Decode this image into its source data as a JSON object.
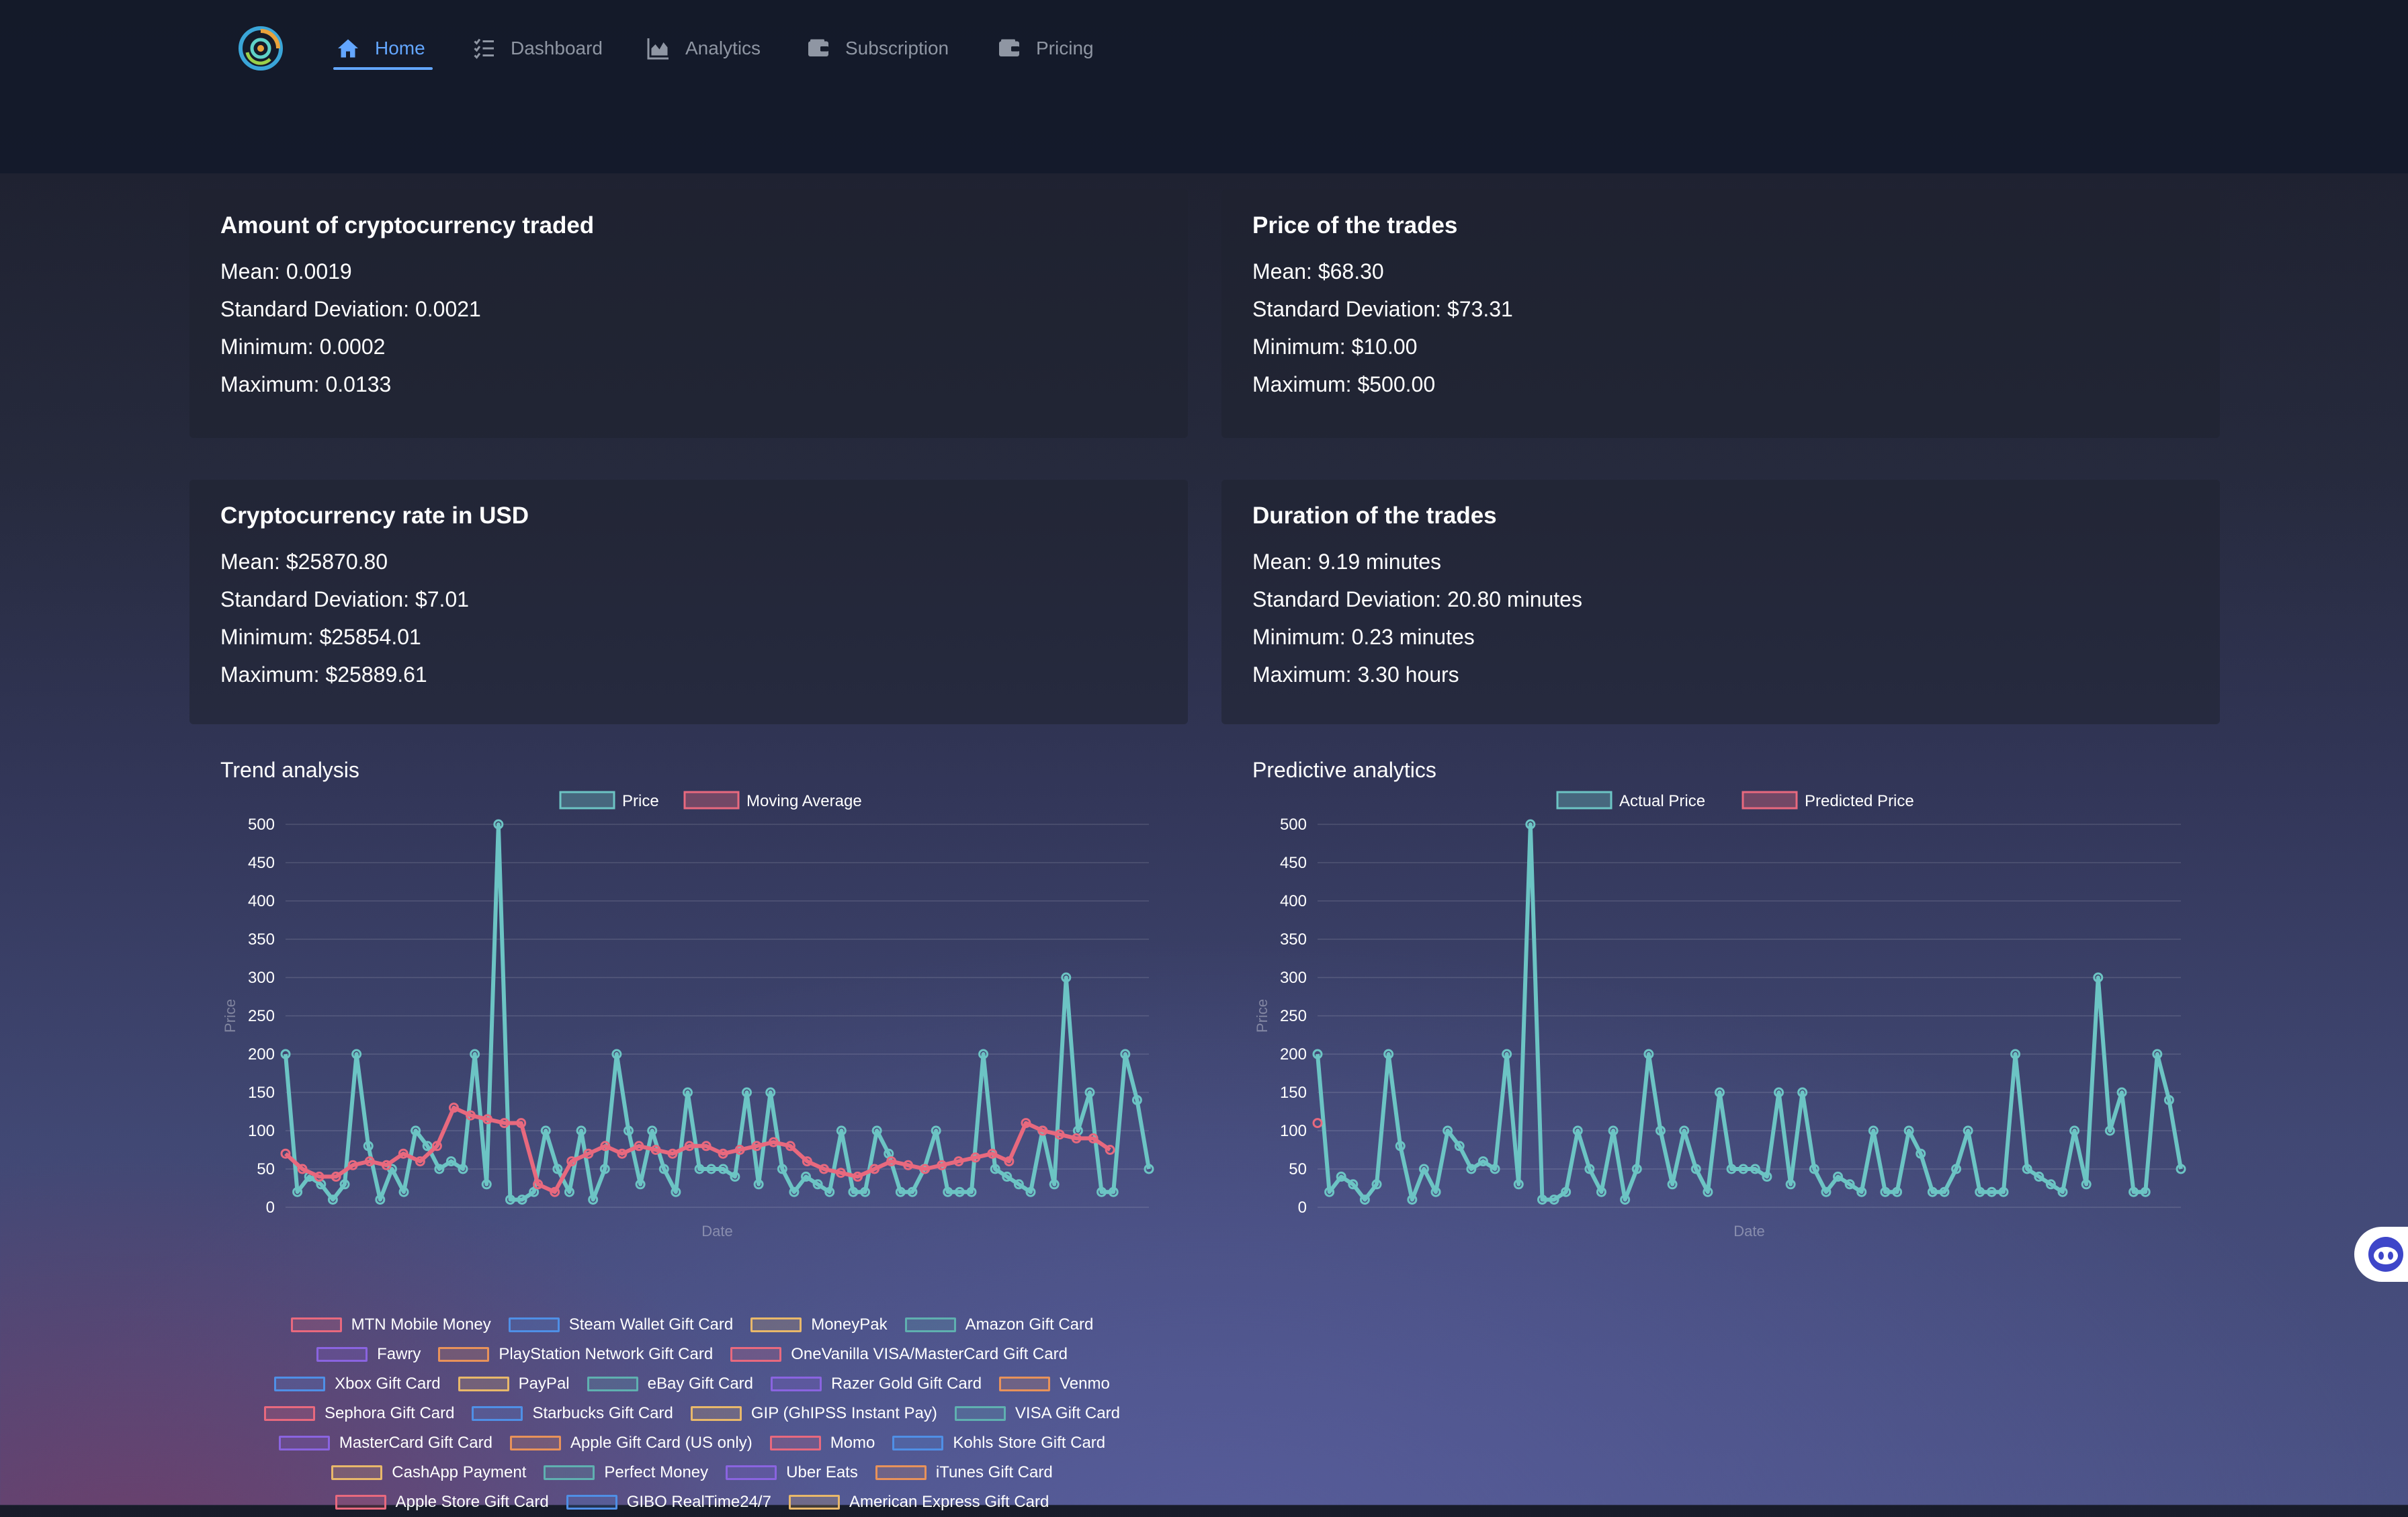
{
  "nav": {
    "items": [
      {
        "label": "Home",
        "icon": "home-icon",
        "active": true
      },
      {
        "label": "Dashboard",
        "icon": "checklist-icon",
        "active": false
      },
      {
        "label": "Analytics",
        "icon": "area-chart-icon",
        "active": false
      },
      {
        "label": "Subscription",
        "icon": "wallet-icon",
        "active": false
      },
      {
        "label": "Pricing",
        "icon": "wallet-icon",
        "active": false
      }
    ],
    "accent_color": "#63a6ff"
  },
  "stats": {
    "amount": {
      "title": "Amount of cryptocurrency traded",
      "mean": "Mean: 0.0019",
      "std": "Standard Deviation: 0.0021",
      "min": "Minimum: 0.0002",
      "max": "Maximum: 0.0133"
    },
    "price": {
      "title": "Price of the trades",
      "mean": "Mean: $68.30",
      "std": "Standard Deviation: $73.31",
      "min": "Minimum: $10.00",
      "max": "Maximum: $500.00"
    },
    "rate": {
      "title": "Cryptocurrency rate in USD",
      "mean": "Mean: $25870.80",
      "std": "Standard Deviation: $7.01",
      "min": "Minimum: $25854.01",
      "max": "Maximum: $25889.61"
    },
    "duration": {
      "title": "Duration of the trades",
      "mean": "Mean: 9.19 minutes",
      "std": "Standard Deviation: 20.80 minutes",
      "min": "Minimum: 0.23 minutes",
      "max": "Maximum: 3.30 hours"
    }
  },
  "chart_data": [
    {
      "type": "line",
      "title": "Trend analysis",
      "xlabel": "Date",
      "ylabel": "Price",
      "ylim": [
        0,
        500
      ],
      "yticks": [
        0,
        50,
        100,
        150,
        200,
        250,
        300,
        350,
        400,
        450,
        500
      ],
      "grid": true,
      "legend_position": "top",
      "series": [
        {
          "name": "Price",
          "color": "#6cc4c4",
          "values": [
            200,
            20,
            40,
            30,
            10,
            30,
            200,
            80,
            10,
            50,
            20,
            100,
            80,
            50,
            60,
            50,
            200,
            30,
            500,
            10,
            10,
            20,
            100,
            50,
            20,
            100,
            10,
            50,
            200,
            100,
            30,
            100,
            50,
            20,
            150,
            50,
            50,
            50,
            40,
            150,
            30,
            150,
            50,
            20,
            40,
            30,
            20,
            100,
            20,
            20,
            100,
            70,
            20,
            20,
            50,
            100,
            20,
            20,
            20,
            200,
            50,
            40,
            30,
            20,
            100,
            30,
            300,
            100,
            150,
            20,
            20,
            200,
            140,
            50
          ]
        },
        {
          "name": "Moving Average",
          "color": "#e8697e",
          "values": [
            70,
            50,
            40,
            40,
            55,
            60,
            55,
            70,
            60,
            80,
            130,
            120,
            115,
            110,
            110,
            30,
            20,
            60,
            70,
            80,
            70,
            80,
            75,
            70,
            80,
            80,
            70,
            75,
            80,
            85,
            80,
            60,
            50,
            45,
            40,
            50,
            60,
            55,
            50,
            55,
            60,
            65,
            70,
            60,
            110,
            100,
            95,
            90,
            90,
            75
          ]
        }
      ]
    },
    {
      "type": "line",
      "title": "Predictive analytics",
      "xlabel": "Date",
      "ylabel": "Price",
      "ylim": [
        0,
        500
      ],
      "yticks": [
        0,
        50,
        100,
        150,
        200,
        250,
        300,
        350,
        400,
        450,
        500
      ],
      "grid": true,
      "legend_position": "top",
      "series": [
        {
          "name": "Actual Price",
          "color": "#6cc4c4",
          "values": [
            200,
            20,
            40,
            30,
            10,
            30,
            200,
            80,
            10,
            50,
            20,
            100,
            80,
            50,
            60,
            50,
            200,
            30,
            500,
            10,
            10,
            20,
            100,
            50,
            20,
            100,
            10,
            50,
            200,
            100,
            30,
            100,
            50,
            20,
            150,
            50,
            50,
            50,
            40,
            150,
            30,
            150,
            50,
            20,
            40,
            30,
            20,
            100,
            20,
            20,
            100,
            70,
            20,
            20,
            50,
            100,
            20,
            20,
            20,
            200,
            50,
            40,
            30,
            20,
            100,
            30,
            300,
            100,
            150,
            20,
            20,
            200,
            140,
            50
          ]
        },
        {
          "name": "Predicted Price",
          "color": "#e8697e",
          "values": [
            110
          ]
        }
      ]
    }
  ],
  "payment_legend": [
    [
      {
        "label": "MTN Mobile Money",
        "color": "#e8697e"
      },
      {
        "label": "Steam Wallet Gift Card",
        "color": "#4f8fe6"
      },
      {
        "label": "MoneyPak",
        "color": "#e8b86a"
      },
      {
        "label": "Amazon Gift Card",
        "color": "#5fb0b0"
      }
    ],
    [
      {
        "label": "Fawry",
        "color": "#8a64e0"
      },
      {
        "label": "PlayStation Network Gift Card",
        "color": "#e8925a"
      },
      {
        "label": "OneVanilla VISA/MasterCard Gift Card",
        "color": "#e8697e"
      }
    ],
    [
      {
        "label": "Xbox Gift Card",
        "color": "#4f8fe6"
      },
      {
        "label": "PayPal",
        "color": "#e8b86a"
      },
      {
        "label": "eBay Gift Card",
        "color": "#5fb0b0"
      },
      {
        "label": "Razer Gold Gift Card",
        "color": "#8a64e0"
      },
      {
        "label": "Venmo",
        "color": "#e8925a"
      }
    ],
    [
      {
        "label": "Sephora Gift Card",
        "color": "#e8697e"
      },
      {
        "label": "Starbucks Gift Card",
        "color": "#4f8fe6"
      },
      {
        "label": "GIP (GhIPSS Instant Pay)",
        "color": "#e8b86a"
      },
      {
        "label": "VISA Gift Card",
        "color": "#5fb0b0"
      }
    ],
    [
      {
        "label": "MasterCard Gift Card",
        "color": "#8a64e0"
      },
      {
        "label": "Apple Gift Card (US only)",
        "color": "#e8925a"
      },
      {
        "label": "Momo",
        "color": "#e8697e"
      },
      {
        "label": "Kohls Store Gift Card",
        "color": "#4f8fe6"
      }
    ],
    [
      {
        "label": "CashApp Payment",
        "color": "#e8b86a"
      },
      {
        "label": "Perfect Money",
        "color": "#5fb0b0"
      },
      {
        "label": "Uber Eats",
        "color": "#8a64e0"
      },
      {
        "label": "iTunes Gift Card",
        "color": "#e8925a"
      }
    ],
    [
      {
        "label": "Apple Store Gift Card",
        "color": "#e8697e"
      },
      {
        "label": "GIBO RealTime24/7",
        "color": "#4f8fe6"
      },
      {
        "label": "American Express Gift Card",
        "color": "#e8b86a"
      }
    ]
  ],
  "assistant": {
    "icon": "chatbot-icon"
  }
}
